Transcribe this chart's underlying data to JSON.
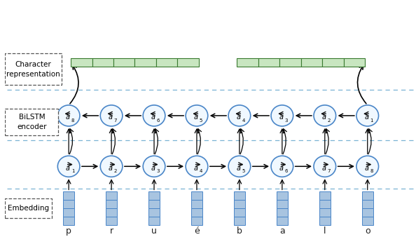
{
  "chars": [
    "p",
    "r",
    "u",
    "é",
    "b",
    "a",
    "l",
    "o"
  ],
  "n_chars": 8,
  "bg_color": "#ffffff",
  "dashed_line_color": "#7ab3d4",
  "embed_color_face": "#a8c4e0",
  "embed_color_edge": "#4a86c8",
  "circle_color_face": "#f0f8ff",
  "circle_color_edge": "#4a86c8",
  "green_rect_color_face": "#c8e6c0",
  "green_rect_color_edge": "#3a7a30",
  "arrow_color": "#000000",
  "char_repr_label": "Character\nrepresentation",
  "bilstm_label": "BiLSTM\nencoder",
  "embedding_label": "Embedding",
  "tick_fontsize": 9
}
